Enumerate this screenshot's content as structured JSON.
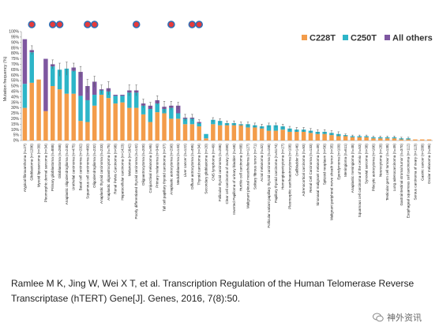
{
  "chart_data": {
    "type": "bar",
    "stacked": true,
    "ylabel": "Mutation frequency (%)",
    "ylim": [
      0,
      100
    ],
    "yticks": [
      "0%",
      "5%",
      "10%",
      "15%",
      "20%",
      "25%",
      "30%",
      "35%",
      "40%",
      "45%",
      "50%",
      "55%",
      "60%",
      "65%",
      "70%",
      "75%",
      "80%",
      "85%",
      "90%",
      "95%",
      "100%"
    ],
    "legend_position": "top-right",
    "series": [
      {
        "name": "C228T",
        "color": "#f39c4a"
      },
      {
        "name": "C250T",
        "color": "#2db5c8"
      },
      {
        "name": "All others",
        "color": "#7e57a0"
      }
    ],
    "categories": [
      "Atypical fibroxanthoma (n=27)",
      "Glioblastoma (n=1286)",
      "Myxoid liposarcoma (n=39)",
      "Pleomorphic dermal sarcoma (n=34)",
      "Primary glioblastoma (n=888)",
      "Glioblastoma (n=268)",
      "Anaplastic oligodendroglioma (n=240)",
      "Urothelial carcinoma (n=475)",
      "Basal cell carcinoma (n=292)",
      "Squamous cell carcinoma (n=460)",
      "Oligodendroglioma (n=232)",
      "Anaplastic thyroid carcinoma (n=233)",
      "Anaplastic oligoastrocytoma (n=75)",
      "Renal Pelvis Carcinoma (n=98)",
      "Hepatocellular carcinoma (n=1423)",
      "Melanoma (n=1642)",
      "Poorly differentiated thyroid carcinoma (n=142)",
      "Oligoastrocytoma (n=200)",
      "Conjunctival melanoma (n=95)",
      "Primary melanoma (n=340)",
      "Tall cell papillary thyroid carcinoma (n=37)",
      "Anaplastic astrocytoma (n=290)",
      "Medulloblastoma (n=143)",
      "Liver cancer (n=122)",
      "Diffuse astrocytoma (n=495)",
      "Thyroid carcinoma (n=34)",
      "Secondary glioblastoma (n=20)",
      "CNS lymphoma (n=49)",
      "Follicular thyroid carcinoma (n=286)",
      "Clear cell carcinoma of ovary (n=289)",
      "Inverted Papilloma of urinary bladder (n=58)",
      "Hurthle cell carcinoma (n=88)",
      "Malignant pleural mesothelioma (n=127)",
      "Solitary fibrous tumor (n=71)",
      "Acral melanoma (n=32)",
      "Follicular variant papillary thyroid carcinoma (n=158)",
      "Papillary thyroid carcinoma (n=5174)",
      "Hemangiopericytoma (n=27)",
      "Pleomorphic xanthoastrocytoma (n=108)",
      "Gallbladder (n=146)",
      "Adrenocortical carcinoma (n=93)",
      "Renal Cell Carcinoma (n=133)",
      "Sinonasal malignant melanoma (n=49)",
      "Spitzoid neoplasm (n=56)",
      "Malignant peripheral nerve sheath tumor (n=35)",
      "Ependymoma (n=109)",
      "Meningioma (n=611)",
      "Anaplastic meningioma (n=48)",
      "Squamous cell carcinoma of the cervix (n=53)",
      "Synovial sarcoma (n=38)",
      "Pilocytic astrocytoma (n=166)",
      "Neurocytoma (n=28)",
      "Testicular germ cell tumour (n=138)",
      "Lung adenocarcinoma (n=49)",
      "Gastrointestinal stromal tumor (n=370)",
      "Esophageal squamous cell carcinoma (n=112)",
      "Serous carcinoma of ovary (n=113)",
      "Gastric cancer (n=288)",
      "Ocular melanoma (n=86)"
    ],
    "c228t": [
      30,
      53,
      56,
      27,
      50,
      47,
      43,
      43,
      18,
      17,
      32,
      42,
      39,
      34,
      35,
      30,
      30,
      24,
      17,
      26,
      25,
      20,
      20,
      15,
      15,
      13,
      2,
      15,
      14,
      14,
      14,
      14,
      12,
      12,
      11,
      9,
      9,
      10,
      8,
      8,
      8,
      7,
      6,
      6,
      5,
      4,
      4,
      3,
      3,
      3,
      2,
      2,
      2,
      2,
      1,
      1,
      1,
      1,
      1
    ],
    "c250t": [
      22,
      28,
      0,
      0,
      18,
      18,
      23,
      21,
      23,
      20,
      10,
      4,
      6,
      7,
      6,
      14,
      14,
      8,
      12,
      8,
      4,
      10,
      5,
      5,
      5,
      3,
      4,
      4,
      4,
      2,
      2,
      1,
      3,
      2,
      2,
      5,
      5,
      3,
      3,
      2,
      2,
      2,
      2,
      2,
      2,
      2,
      1,
      1,
      1,
      1,
      1,
      1,
      1,
      1,
      1,
      1,
      0,
      0,
      0
    ],
    "others": [
      41,
      2,
      0,
      48,
      2,
      0,
      0,
      3,
      22,
      13,
      12,
      1,
      3,
      1,
      1,
      2,
      2,
      2,
      3,
      3,
      2,
      2,
      7,
      1,
      1,
      1,
      0,
      0,
      0,
      0,
      0,
      0,
      0,
      0,
      0,
      0,
      0,
      0,
      0,
      0,
      0,
      0,
      0,
      0,
      0,
      0,
      0,
      0,
      0,
      0,
      0,
      0,
      0,
      0,
      0,
      0,
      0,
      0,
      0
    ],
    "error": [
      0,
      4,
      0,
      0,
      4,
      6,
      6,
      4,
      5,
      6,
      5,
      4,
      6,
      0,
      0,
      5,
      5,
      4,
      3,
      4,
      5,
      4,
      3,
      3,
      3,
      2,
      0,
      2,
      2,
      2,
      2,
      2,
      2,
      2,
      2,
      2,
      2,
      2,
      2,
      2,
      2,
      2,
      2,
      2,
      2,
      2,
      1,
      1,
      1,
      1,
      1,
      1,
      1,
      1,
      1,
      1,
      0,
      0,
      0
    ],
    "markers": [
      1,
      4,
      5,
      9,
      10,
      16,
      21,
      24,
      25
    ],
    "marker_color": "#e63b3b",
    "marker_ring": "#2e6fb5"
  },
  "citation": "Ramlee M K, Jing W, Wei X T, et al. Transcription Regulation of the Human Telomerase Reverse Transcriptase (hTERT) Gene[J]. Genes, 2016, 7(8):50.",
  "watermark": "神外资讯"
}
